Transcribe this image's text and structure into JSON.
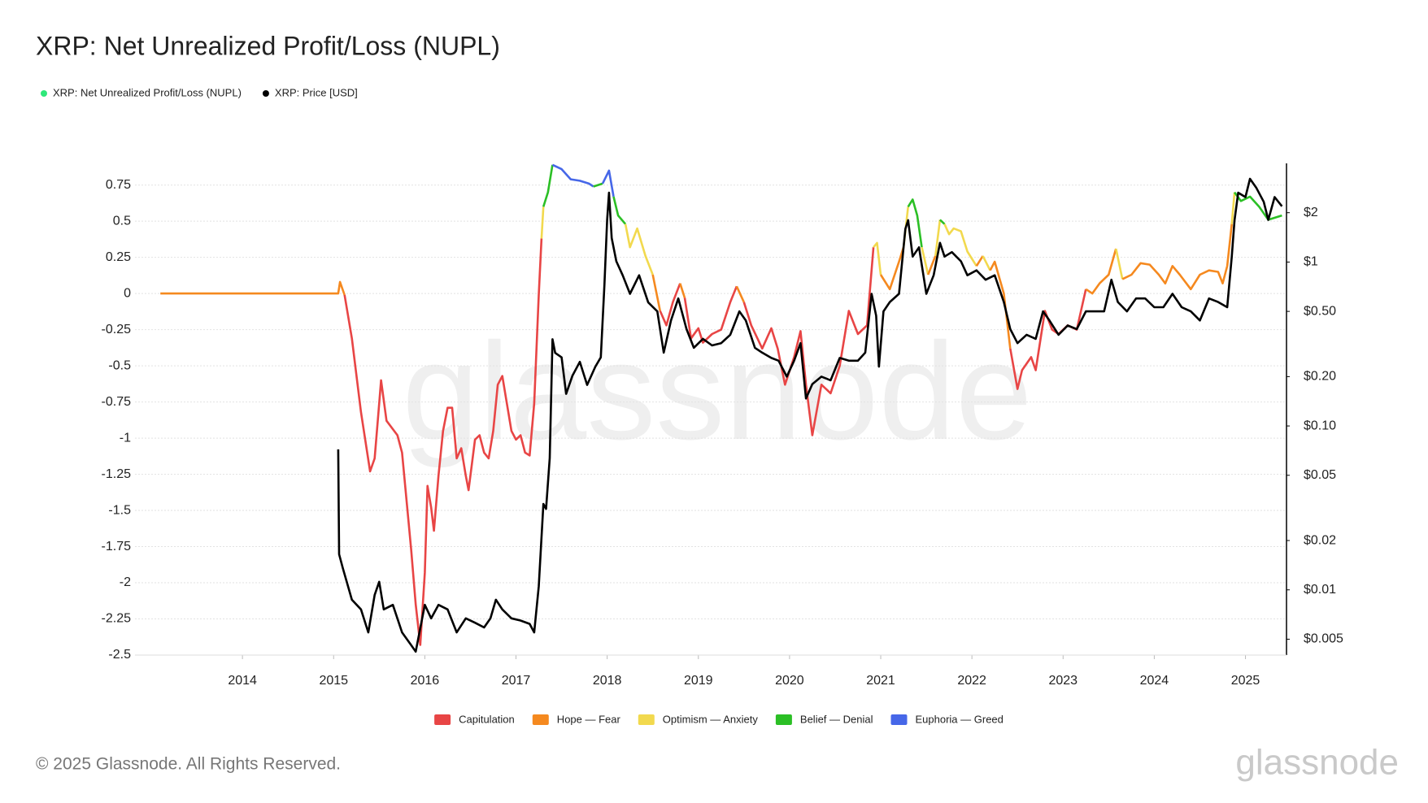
{
  "chart_data": {
    "type": "line",
    "title": "XRP: Net Unrealized Profit/Loss (NUPL)",
    "watermark": "glassnode",
    "footer": "© 2025 Glassnode. All Rights Reserved.",
    "logo": "glassnode",
    "grid": true,
    "xlim": [
      2013.0,
      2025.45
    ],
    "xticks": [
      2014,
      2015,
      2016,
      2017,
      2018,
      2019,
      2020,
      2021,
      2022,
      2023,
      2024,
      2025
    ],
    "ylim": [
      -2.5,
      0.9
    ],
    "yticks": [
      0.75,
      0.5,
      0.25,
      0,
      -0.25,
      -0.5,
      -0.75,
      -1,
      -1.25,
      -1.5,
      -1.75,
      -2,
      -2.25,
      -2.5
    ],
    "y2lim": [
      0.004,
      4
    ],
    "y2log": true,
    "y2ticks": [
      {
        "value": 2,
        "label": "$2"
      },
      {
        "value": 1,
        "label": "$1"
      },
      {
        "value": 0.5,
        "label": "$0.50"
      },
      {
        "value": 0.2,
        "label": "$0.20"
      },
      {
        "value": 0.1,
        "label": "$0.10"
      },
      {
        "value": 0.05,
        "label": "$0.05"
      },
      {
        "value": 0.02,
        "label": "$0.02"
      },
      {
        "value": 0.01,
        "label": "$0.01"
      },
      {
        "value": 0.005,
        "label": "$0.005"
      }
    ],
    "zones": [
      {
        "name": "Capitulation",
        "color": "#e84545",
        "max": 0
      },
      {
        "name": "Hope — Fear",
        "color": "#f5891f",
        "max": 0.25
      },
      {
        "name": "Optimism — Anxiety",
        "color": "#f2d94e",
        "max": 0.5
      },
      {
        "name": "Belief — Denial",
        "color": "#2bbf25",
        "max": 0.75
      },
      {
        "name": "Euphoria — Greed",
        "color": "#4667e8"
      }
    ],
    "series": [
      {
        "name": "XRP: Net Unrealized Profit/Loss (NUPL)",
        "color": "#2ee87a",
        "x": [
          2013.1,
          2015.05,
          2015.07,
          2015.12,
          2015.2,
          2015.3,
          2015.4,
          2015.45,
          2015.5,
          2015.52,
          2015.58,
          2015.7,
          2015.75,
          2015.85,
          2015.9,
          2015.95,
          2016.0,
          2016.03,
          2016.07,
          2016.1,
          2016.15,
          2016.2,
          2016.25,
          2016.3,
          2016.35,
          2016.4,
          2016.45,
          2016.48,
          2016.55,
          2016.6,
          2016.65,
          2016.7,
          2016.75,
          2016.8,
          2016.85,
          2016.9,
          2016.95,
          2017.0,
          2017.05,
          2017.1,
          2017.15,
          2017.2,
          2017.25,
          2017.28,
          2017.3,
          2017.35,
          2017.4,
          2017.5,
          2017.6,
          2017.7,
          2017.8,
          2017.85,
          2017.95,
          2018.02,
          2018.07,
          2018.12,
          2018.2,
          2018.25,
          2018.33,
          2018.42,
          2018.5,
          2018.58,
          2018.65,
          2018.72,
          2018.8,
          2018.85,
          2018.92,
          2019.0,
          2019.05,
          2019.15,
          2019.25,
          2019.35,
          2019.42,
          2019.5,
          2019.58,
          2019.7,
          2019.8,
          2019.87,
          2019.95,
          2020.05,
          2020.12,
          2020.18,
          2020.25,
          2020.35,
          2020.45,
          2020.55,
          2020.65,
          2020.75,
          2020.85,
          2020.92,
          2020.96,
          2021.0,
          2021.1,
          2021.2,
          2021.25,
          2021.3,
          2021.35,
          2021.4,
          2021.45,
          2021.52,
          2021.6,
          2021.65,
          2021.7,
          2021.75,
          2021.8,
          2021.88,
          2021.95,
          2022.05,
          2022.12,
          2022.2,
          2022.25,
          2022.35,
          2022.42,
          2022.5,
          2022.55,
          2022.65,
          2022.7,
          2022.8,
          2022.88,
          2022.95,
          2023.05,
          2023.15,
          2023.25,
          2023.32,
          2023.4,
          2023.5,
          2023.58,
          2023.65,
          2023.75,
          2023.85,
          2023.95,
          2024.05,
          2024.12,
          2024.2,
          2024.28,
          2024.4,
          2024.5,
          2024.6,
          2024.7,
          2024.75,
          2024.8,
          2024.85,
          2024.88,
          2024.95,
          2025.05,
          2025.15,
          2025.25,
          2025.3,
          2025.4
        ],
        "values": [
          0,
          0,
          0.08,
          -0.01,
          -0.31,
          -0.82,
          -1.23,
          -1.14,
          -0.76,
          -0.6,
          -0.88,
          -0.98,
          -1.1,
          -1.77,
          -2.15,
          -2.43,
          -1.93,
          -1.33,
          -1.48,
          -1.64,
          -1.26,
          -0.95,
          -0.79,
          -0.79,
          -1.14,
          -1.07,
          -1.26,
          -1.36,
          -1.01,
          -0.98,
          -1.1,
          -1.14,
          -0.95,
          -0.63,
          -0.57,
          -0.76,
          -0.95,
          -1.01,
          -0.98,
          -1.1,
          -1.12,
          -0.76,
          -0.01,
          0.38,
          0.6,
          0.7,
          0.89,
          0.86,
          0.79,
          0.78,
          0.76,
          0.74,
          0.76,
          0.85,
          0.67,
          0.54,
          0.48,
          0.32,
          0.45,
          0.26,
          0.13,
          -0.12,
          -0.22,
          -0.06,
          0.07,
          -0.03,
          -0.31,
          -0.24,
          -0.34,
          -0.28,
          -0.25,
          -0.06,
          0.05,
          -0.06,
          -0.22,
          -0.38,
          -0.24,
          -0.38,
          -0.63,
          -0.44,
          -0.26,
          -0.63,
          -0.98,
          -0.63,
          -0.69,
          -0.5,
          -0.12,
          -0.28,
          -0.22,
          0.32,
          0.35,
          0.13,
          0.03,
          0.22,
          0.32,
          0.6,
          0.65,
          0.54,
          0.32,
          0.13,
          0.26,
          0.51,
          0.48,
          0.41,
          0.45,
          0.43,
          0.29,
          0.19,
          0.26,
          0.16,
          0.22,
          0,
          -0.38,
          -0.66,
          -0.53,
          -0.44,
          -0.53,
          -0.12,
          -0.25,
          -0.28,
          -0.22,
          -0.25,
          0.03,
          0,
          0.07,
          0.13,
          0.31,
          0.1,
          0.13,
          0.21,
          0.2,
          0.13,
          0.07,
          0.19,
          0.13,
          0.03,
          0.13,
          0.16,
          0.15,
          0.07,
          0.19,
          0.48,
          0.7,
          0.64,
          0.67,
          0.6,
          0.51,
          0.52,
          0.54
        ]
      },
      {
        "name": "XRP: Price [USD]",
        "color": "#000000",
        "axis": "y2",
        "x": [
          2015.05,
          2015.06,
          2015.1,
          2015.2,
          2015.3,
          2015.38,
          2015.45,
          2015.5,
          2015.55,
          2015.65,
          2015.75,
          2015.85,
          2015.9,
          2016.0,
          2016.07,
          2016.15,
          2016.25,
          2016.35,
          2016.45,
          2016.55,
          2016.65,
          2016.72,
          2016.78,
          2016.85,
          2016.95,
          2017.05,
          2017.15,
          2017.2,
          2017.25,
          2017.3,
          2017.33,
          2017.37,
          2017.4,
          2017.43,
          2017.5,
          2017.55,
          2017.62,
          2017.7,
          2017.78,
          2017.87,
          2017.93,
          2017.97,
          2018.0,
          2018.02,
          2018.05,
          2018.1,
          2018.17,
          2018.25,
          2018.35,
          2018.45,
          2018.55,
          2018.62,
          2018.7,
          2018.78,
          2018.87,
          2018.95,
          2019.05,
          2019.15,
          2019.25,
          2019.35,
          2019.45,
          2019.52,
          2019.62,
          2019.7,
          2019.8,
          2019.88,
          2019.97,
          2020.05,
          2020.12,
          2020.18,
          2020.25,
          2020.35,
          2020.45,
          2020.55,
          2020.65,
          2020.75,
          2020.83,
          2020.9,
          2020.95,
          2020.98,
          2021.03,
          2021.1,
          2021.2,
          2021.27,
          2021.3,
          2021.35,
          2021.42,
          2021.5,
          2021.58,
          2021.65,
          2021.7,
          2021.78,
          2021.88,
          2021.95,
          2022.05,
          2022.15,
          2022.25,
          2022.35,
          2022.42,
          2022.5,
          2022.6,
          2022.7,
          2022.78,
          2022.85,
          2022.95,
          2023.05,
          2023.15,
          2023.25,
          2023.35,
          2023.45,
          2023.53,
          2023.6,
          2023.7,
          2023.8,
          2023.9,
          2024.0,
          2024.1,
          2024.2,
          2024.3,
          2024.4,
          2024.5,
          2024.6,
          2024.7,
          2024.8,
          2024.85,
          2024.88,
          2024.92,
          2025.0,
          2025.05,
          2025.12,
          2025.2,
          2025.25,
          2025.32,
          2025.4
        ],
        "values": [
          0.072,
          0.0165,
          0.0136,
          0.0087,
          0.0076,
          0.0055,
          0.0093,
          0.0112,
          0.0076,
          0.0081,
          0.0055,
          0.0046,
          0.0042,
          0.0081,
          0.0067,
          0.0081,
          0.0076,
          0.0055,
          0.0067,
          0.0063,
          0.0059,
          0.0067,
          0.0087,
          0.0076,
          0.0067,
          0.0065,
          0.0062,
          0.0055,
          0.0105,
          0.0334,
          0.0312,
          0.0637,
          0.338,
          0.279,
          0.262,
          0.157,
          0.203,
          0.246,
          0.178,
          0.23,
          0.262,
          0.733,
          1.81,
          2.65,
          1.4,
          1.01,
          0.83,
          0.64,
          0.83,
          0.567,
          0.5,
          0.28,
          0.44,
          0.6,
          0.39,
          0.3,
          0.34,
          0.31,
          0.32,
          0.36,
          0.5,
          0.44,
          0.3,
          0.28,
          0.26,
          0.25,
          0.2,
          0.25,
          0.32,
          0.147,
          0.18,
          0.2,
          0.19,
          0.26,
          0.25,
          0.25,
          0.28,
          0.64,
          0.47,
          0.23,
          0.5,
          0.57,
          0.64,
          1.59,
          1.8,
          1.08,
          1.23,
          0.64,
          0.83,
          1.31,
          1.08,
          1.15,
          1.01,
          0.83,
          0.89,
          0.78,
          0.83,
          0.57,
          0.39,
          0.32,
          0.36,
          0.34,
          0.5,
          0.44,
          0.36,
          0.41,
          0.39,
          0.5,
          0.5,
          0.5,
          0.78,
          0.57,
          0.5,
          0.6,
          0.6,
          0.53,
          0.53,
          0.64,
          0.53,
          0.5,
          0.44,
          0.6,
          0.57,
          0.53,
          1.08,
          1.8,
          2.65,
          2.49,
          3.22,
          2.83,
          2.33,
          1.81,
          2.49,
          2.19
        ]
      }
    ]
  }
}
